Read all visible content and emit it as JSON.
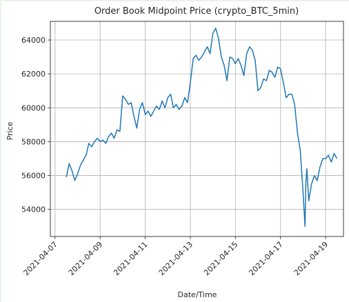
{
  "chart_data": {
    "type": "line",
    "title": "Order Book Midpoint Price (crypto_BTC_5min)",
    "xlabel": "Date/Time",
    "ylabel": "Price",
    "grid": true,
    "x_tick_labels": [
      "2021-04-07",
      "2021-04-09",
      "2021-04-11",
      "2021-04-13",
      "2021-04-15",
      "2021-04-17",
      "2021-04-19"
    ],
    "y_ticks": [
      54000,
      56000,
      58000,
      60000,
      62000,
      64000
    ],
    "ylim": [
      52400,
      65100
    ],
    "xlim": [
      "2021-04-06 19:00",
      "2021-04-19 19:00"
    ],
    "series": [
      {
        "color": "#1f77b4",
        "x": [
          "2021-04-07 12:00",
          "2021-04-07 15:00",
          "2021-04-07 18:00",
          "2021-04-07 21:00",
          "2021-04-08 00:00",
          "2021-04-08 03:00",
          "2021-04-08 06:00",
          "2021-04-08 09:00",
          "2021-04-08 12:00",
          "2021-04-08 15:00",
          "2021-04-08 18:00",
          "2021-04-08 21:00",
          "2021-04-09 00:00",
          "2021-04-09 03:00",
          "2021-04-09 06:00",
          "2021-04-09 09:00",
          "2021-04-09 12:00",
          "2021-04-09 15:00",
          "2021-04-09 18:00",
          "2021-04-09 21:00",
          "2021-04-10 00:00",
          "2021-04-10 03:00",
          "2021-04-10 06:00",
          "2021-04-10 09:00",
          "2021-04-10 12:00",
          "2021-04-10 15:00",
          "2021-04-10 18:00",
          "2021-04-10 21:00",
          "2021-04-11 00:00",
          "2021-04-11 03:00",
          "2021-04-11 06:00",
          "2021-04-11 09:00",
          "2021-04-11 12:00",
          "2021-04-11 15:00",
          "2021-04-11 18:00",
          "2021-04-11 21:00",
          "2021-04-12 00:00",
          "2021-04-12 03:00",
          "2021-04-12 06:00",
          "2021-04-12 09:00",
          "2021-04-12 12:00",
          "2021-04-12 15:00",
          "2021-04-12 18:00",
          "2021-04-12 21:00",
          "2021-04-13 00:00",
          "2021-04-13 03:00",
          "2021-04-13 06:00",
          "2021-04-13 09:00",
          "2021-04-13 12:00",
          "2021-04-13 15:00",
          "2021-04-13 18:00",
          "2021-04-13 21:00",
          "2021-04-14 00:00",
          "2021-04-14 03:00",
          "2021-04-14 06:00",
          "2021-04-14 09:00",
          "2021-04-14 12:00",
          "2021-04-14 15:00",
          "2021-04-14 18:00",
          "2021-04-14 21:00",
          "2021-04-15 00:00",
          "2021-04-15 03:00",
          "2021-04-15 06:00",
          "2021-04-15 09:00",
          "2021-04-15 12:00",
          "2021-04-15 15:00",
          "2021-04-15 18:00",
          "2021-04-15 21:00",
          "2021-04-16 00:00",
          "2021-04-16 03:00",
          "2021-04-16 06:00",
          "2021-04-16 09:00",
          "2021-04-16 12:00",
          "2021-04-16 15:00",
          "2021-04-16 18:00",
          "2021-04-16 21:00",
          "2021-04-17 00:00",
          "2021-04-17 03:00",
          "2021-04-17 06:00",
          "2021-04-17 09:00",
          "2021-04-17 12:00",
          "2021-04-17 15:00",
          "2021-04-17 18:00",
          "2021-04-17 21:00",
          "2021-04-18 00:00",
          "2021-04-18 02:00",
          "2021-04-18 03:00",
          "2021-04-18 04:00",
          "2021-04-18 06:00",
          "2021-04-18 09:00",
          "2021-04-18 12:00",
          "2021-04-18 15:00",
          "2021-04-18 18:00",
          "2021-04-18 21:00",
          "2021-04-19 00:00",
          "2021-04-19 03:00",
          "2021-04-19 06:00",
          "2021-04-19 09:00",
          "2021-04-19 12:00"
        ],
        "values": [
          55900,
          56700,
          56300,
          55700,
          56100,
          56600,
          56900,
          57200,
          57900,
          57700,
          58000,
          58200,
          58000,
          58100,
          57900,
          58300,
          58500,
          58200,
          58700,
          58600,
          60700,
          60500,
          60200,
          60300,
          59500,
          58800,
          59900,
          60300,
          59600,
          59800,
          59500,
          59800,
          60100,
          59900,
          60400,
          60000,
          60600,
          60800,
          60000,
          60200,
          59900,
          60100,
          60600,
          60300,
          61500,
          62900,
          63100,
          62800,
          63000,
          63300,
          63600,
          63200,
          64400,
          64700,
          64100,
          63000,
          62500,
          61600,
          63000,
          62900,
          62600,
          62900,
          62500,
          61900,
          63200,
          63600,
          63400,
          62800,
          61000,
          61200,
          61700,
          61600,
          62200,
          62100,
          61800,
          62400,
          62300,
          61500,
          60600,
          60800,
          60800,
          60200,
          58500,
          57500,
          55000,
          53000,
          55600,
          56400,
          54500,
          55500,
          56000,
          55700,
          56500,
          57000,
          57000,
          57200,
          56800,
          57300,
          57000
        ]
      }
    ]
  }
}
